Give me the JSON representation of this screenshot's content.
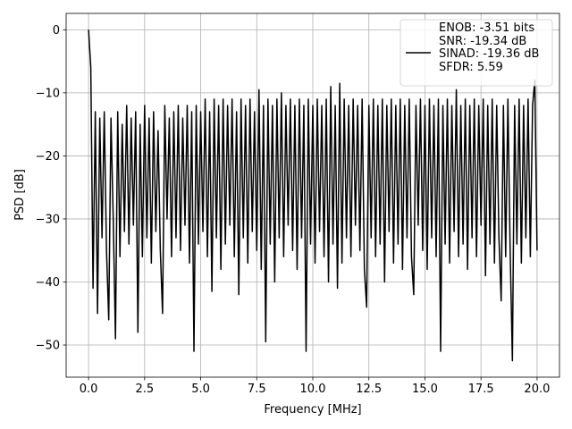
{
  "chart_data": {
    "type": "line",
    "xlabel": "Frequency [MHz]",
    "ylabel": "PSD [dB]",
    "grid": true,
    "legend": "upper right",
    "xlim": [
      -1,
      21
    ],
    "ylim": [
      -55.1,
      2.6
    ],
    "xticks": [
      {
        "value": 0,
        "label": "0.0"
      },
      2.5,
      {
        "value": 5,
        "label": "5.0"
      },
      7.5,
      {
        "value": 10,
        "label": "10.0"
      },
      12.5,
      {
        "value": 15,
        "label": "15.0"
      },
      17.5,
      {
        "value": 20,
        "label": "20.0"
      }
    ],
    "yticks": [
      {
        "value": -50,
        "label": "−50"
      },
      {
        "value": -40,
        "label": "−40"
      },
      {
        "value": -30,
        "label": "−30"
      },
      {
        "value": -20,
        "label": "−20"
      },
      {
        "value": -10,
        "label": "−10"
      },
      0
    ],
    "x": [
      0,
      0.1,
      0.2,
      0.3,
      0.4,
      0.5,
      0.6,
      0.7,
      0.8,
      0.9,
      1,
      1.1,
      1.2,
      1.3,
      1.4,
      1.5,
      1.6,
      1.7,
      1.8,
      1.9,
      2,
      2.1,
      2.2,
      2.3,
      2.4,
      2.5,
      2.6,
      2.7,
      2.8,
      2.9,
      3,
      3.1,
      3.2,
      3.3,
      3.4,
      3.5,
      3.6,
      3.7,
      3.8,
      3.9,
      4,
      4.1,
      4.2,
      4.3,
      4.4,
      4.5,
      4.6,
      4.7,
      4.8,
      4.9,
      5,
      5.1,
      5.2,
      5.3,
      5.4,
      5.5,
      5.6,
      5.7,
      5.8,
      5.9,
      6,
      6.1,
      6.2,
      6.3,
      6.4,
      6.5,
      6.6,
      6.7,
      6.8,
      6.9,
      7,
      7.1,
      7.2,
      7.3,
      7.4,
      7.5,
      7.6,
      7.7,
      7.8,
      7.9,
      8,
      8.1,
      8.2,
      8.3,
      8.4,
      8.5,
      8.6,
      8.7,
      8.8,
      8.9,
      9,
      9.1,
      9.2,
      9.3,
      9.4,
      9.5,
      9.6,
      9.7,
      9.8,
      9.9,
      10,
      10.1,
      10.2,
      10.3,
      10.4,
      10.5,
      10.6,
      10.7,
      10.8,
      10.9,
      11,
      11.1,
      11.2,
      11.3,
      11.4,
      11.5,
      11.6,
      11.7,
      11.8,
      11.9,
      12,
      12.1,
      12.2,
      12.3,
      12.4,
      12.5,
      12.6,
      12.7,
      12.8,
      12.9,
      13,
      13.1,
      13.2,
      13.3,
      13.4,
      13.5,
      13.6,
      13.7,
      13.8,
      13.9,
      14,
      14.1,
      14.2,
      14.3,
      14.4,
      14.5,
      14.6,
      14.7,
      14.8,
      14.9,
      15,
      15.1,
      15.2,
      15.3,
      15.4,
      15.5,
      15.6,
      15.7,
      15.8,
      15.9,
      16,
      16.1,
      16.2,
      16.3,
      16.4,
      16.5,
      16.6,
      16.7,
      16.8,
      16.9,
      17,
      17.1,
      17.2,
      17.3,
      17.4,
      17.5,
      17.6,
      17.7,
      17.8,
      17.9,
      18,
      18.1,
      18.2,
      18.3,
      18.4,
      18.5,
      18.6,
      18.7,
      18.8,
      18.9,
      19,
      19.1,
      19.2,
      19.3,
      19.4,
      19.5,
      19.6,
      19.7,
      19.8,
      19.9,
      20
    ],
    "series": [
      {
        "name": "ENOB: -3.51 bits\nSNR: -19.34 dB\nSINAD: -19.36 dB\nSFDR: 5.59",
        "color": "#000000",
        "values": [
          0,
          -6,
          -41,
          -13,
          -45,
          -14,
          -33,
          -13,
          -35,
          -46,
          -14,
          -30,
          -49,
          -13,
          -36,
          -15,
          -32,
          -12,
          -34,
          -14,
          -31,
          -13,
          -48,
          -15,
          -36,
          -12,
          -33,
          -14,
          -37,
          -13,
          -32,
          -16,
          -35,
          -45,
          -12,
          -30,
          -14,
          -36,
          -13,
          -33,
          -12,
          -35,
          -14,
          -31,
          -12,
          -37,
          -13,
          -51,
          -12,
          -34,
          -13,
          -32,
          -11,
          -36,
          -13,
          -41.5,
          -11,
          -33,
          -12,
          -38,
          -11,
          -34,
          -12,
          -31,
          -11,
          -36,
          -13,
          -42,
          -11,
          -33,
          -12,
          -37,
          -11,
          -32,
          -13,
          -35,
          -9.5,
          -38,
          -12,
          -49.5,
          -11,
          -34,
          -12,
          -40,
          -11,
          -33,
          -10,
          -36,
          -12,
          -31,
          -11,
          -35,
          -12,
          -38,
          -11,
          -33,
          -12,
          -51,
          -11,
          -34,
          -12,
          -37,
          -11,
          -32,
          -12,
          -36,
          -11,
          -40,
          -9,
          -34,
          -12,
          -41,
          -8.5,
          -37,
          -11,
          -33,
          -12,
          -36,
          -11,
          -31,
          -12,
          -35,
          -11,
          -38,
          -44,
          -12,
          -33,
          -11,
          -36,
          -12,
          -34,
          -11,
          -40,
          -12,
          -32,
          -11,
          -37,
          -12,
          -34,
          -11,
          -38,
          -12,
          -33,
          -11,
          -36,
          -42,
          -12,
          -31,
          -11,
          -35,
          -12,
          -38,
          -11,
          -33,
          -12,
          -36,
          -11,
          -51,
          -12,
          -34,
          -11,
          -37,
          -12,
          -32,
          -9.5,
          -36,
          -12,
          -34,
          -11,
          -38,
          -12,
          -33,
          -11,
          -36,
          -12,
          -31,
          -11,
          -39,
          -12,
          -34,
          -11,
          -37,
          -12,
          -33,
          -43,
          -12,
          -36,
          -11,
          -35,
          -52.5,
          -12,
          -34,
          -11,
          -37,
          -12,
          -33,
          -11,
          -36,
          -12,
          -8,
          -35
        ]
      }
    ]
  }
}
